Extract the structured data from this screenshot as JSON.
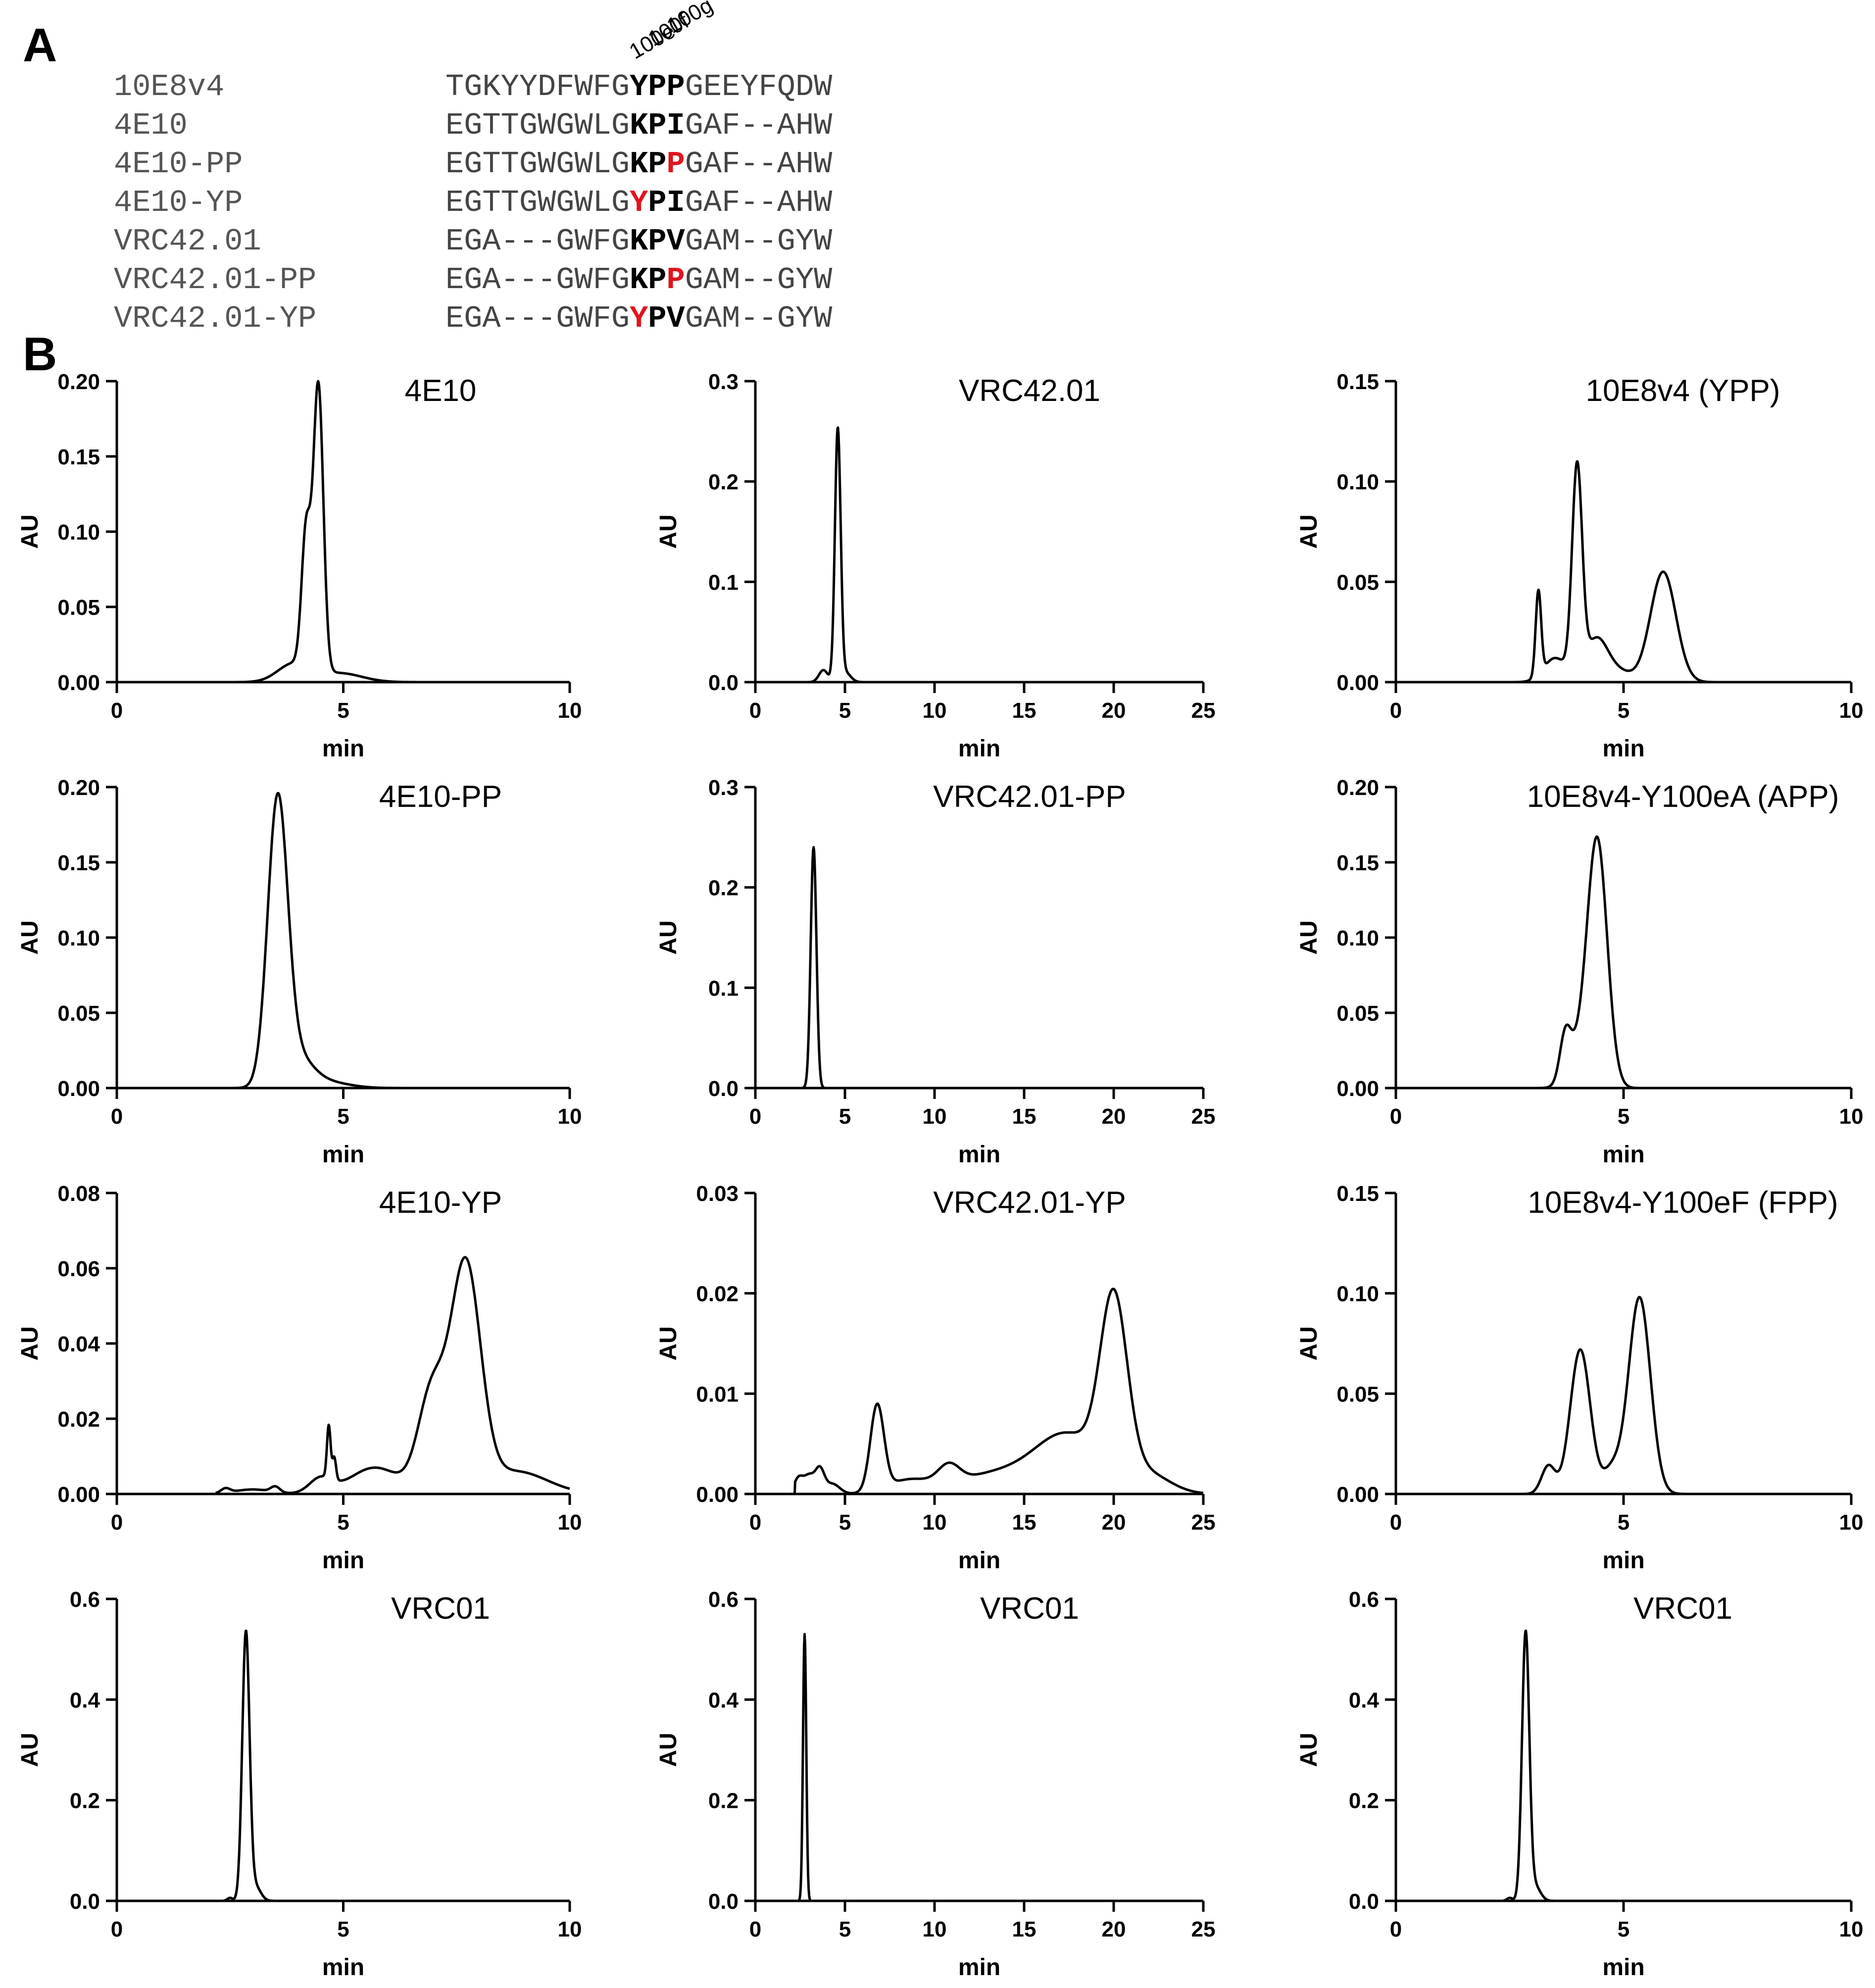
{
  "panel_labels": {
    "a": "A",
    "b": "B"
  },
  "alignment": {
    "position_labels": [
      "100e",
      "100f",
      "100g"
    ],
    "sequences": [
      {
        "name": "10E8v4",
        "prefix": "TGKYYDFWFG",
        "motif": [
          [
            "Y",
            false
          ],
          [
            "P",
            false
          ],
          [
            "P",
            false
          ]
        ],
        "suffix": "GEEYFQDW"
      },
      {
        "name": "4E10",
        "prefix": "EGTTGWGWLG",
        "motif": [
          [
            "K",
            false
          ],
          [
            "P",
            false
          ],
          [
            "I",
            false
          ]
        ],
        "suffix": "GAF--AHW"
      },
      {
        "name": "4E10-PP",
        "prefix": "EGTTGWGWLG",
        "motif": [
          [
            "K",
            false
          ],
          [
            "P",
            false
          ],
          [
            "P",
            true
          ]
        ],
        "suffix": "GAF--AHW"
      },
      {
        "name": "4E10-YP",
        "prefix": "EGTTGWGWLG",
        "motif": [
          [
            "Y",
            true
          ],
          [
            "P",
            false
          ],
          [
            "I",
            false
          ]
        ],
        "suffix": "GAF--AHW"
      },
      {
        "name": "VRC42.01",
        "prefix": "EGA---GWFG",
        "motif": [
          [
            "K",
            false
          ],
          [
            "P",
            false
          ],
          [
            "V",
            false
          ]
        ],
        "suffix": "GAM--GYW"
      },
      {
        "name": "VRC42.01-PP",
        "prefix": "EGA---GWFG",
        "motif": [
          [
            "K",
            false
          ],
          [
            "P",
            false
          ],
          [
            "P",
            true
          ]
        ],
        "suffix": "GAM--GYW"
      },
      {
        "name": "VRC42.01-YP",
        "prefix": "EGA---GWFG",
        "motif": [
          [
            "Y",
            true
          ],
          [
            "P",
            false
          ],
          [
            "V",
            false
          ]
        ],
        "suffix": "GAM--GYW"
      }
    ]
  },
  "colors": {
    "mutation": "#e0141e",
    "line": "#000000"
  },
  "chart_data": [
    {
      "type": "line",
      "title": "4E10",
      "xlabel": "min",
      "ylabel": "AU",
      "xlim": [
        0,
        10
      ],
      "ylim": [
        0,
        0.2
      ],
      "xticks": [
        0,
        5,
        10
      ],
      "yticks": [
        0,
        0.05,
        0.1,
        0.15,
        0.2
      ],
      "ytick_labels": [
        "0.00",
        "0.05",
        "0.10",
        "0.15",
        "0.20"
      ],
      "peaks": [
        {
          "c": 4.18,
          "h": 0.09,
          "w": 0.1
        },
        {
          "c": 4.45,
          "h": 0.19,
          "w": 0.11
        },
        {
          "c": 3.9,
          "h": 0.012,
          "w": 0.35
        },
        {
          "c": 4.9,
          "h": 0.006,
          "w": 0.5
        }
      ]
    },
    {
      "type": "line",
      "title": "VRC42.01",
      "xlabel": "min",
      "ylabel": "AU",
      "xlim": [
        0,
        25
      ],
      "ylim": [
        0,
        0.3
      ],
      "xticks": [
        0,
        5,
        10,
        15,
        20,
        25
      ],
      "yticks": [
        0,
        0.1,
        0.2,
        0.3
      ],
      "ytick_labels": [
        "0.0",
        "0.1",
        "0.2",
        "0.3"
      ],
      "peaks": [
        {
          "c": 3.8,
          "h": 0.012,
          "w": 0.25
        },
        {
          "c": 4.6,
          "h": 0.25,
          "w": 0.16
        },
        {
          "c": 5.0,
          "h": 0.01,
          "w": 0.3
        }
      ]
    },
    {
      "type": "line",
      "title": "10E8v4 (YPP)",
      "xlabel": "min",
      "ylabel": "AU",
      "xlim": [
        0,
        10
      ],
      "ylim": [
        0,
        0.15
      ],
      "xticks": [
        0,
        5,
        10
      ],
      "yticks": [
        0,
        0.05,
        0.1,
        0.15
      ],
      "ytick_labels": [
        "0.00",
        "0.05",
        "0.10",
        "0.15"
      ],
      "peaks": [
        {
          "c": 3.13,
          "h": 0.042,
          "w": 0.06
        },
        {
          "c": 3.5,
          "h": 0.012,
          "w": 0.25
        },
        {
          "c": 3.98,
          "h": 0.103,
          "w": 0.11
        },
        {
          "c": 4.4,
          "h": 0.021,
          "w": 0.25
        },
        {
          "c": 5.87,
          "h": 0.055,
          "w": 0.28
        },
        {
          "c": 4.9,
          "h": 0.005,
          "w": 0.3
        }
      ]
    },
    {
      "type": "line",
      "title": "4E10-PP",
      "xlabel": "min",
      "ylabel": "AU",
      "xlim": [
        0,
        10
      ],
      "ylim": [
        0,
        0.2
      ],
      "xticks": [
        0,
        5,
        10
      ],
      "yticks": [
        0,
        0.05,
        0.1,
        0.15,
        0.2
      ],
      "ytick_labels": [
        "0.00",
        "0.05",
        "0.10",
        "0.15",
        "0.20"
      ],
      "peaks": [
        {
          "c": 3.55,
          "h": 0.185,
          "w": 0.22
        },
        {
          "c": 3.95,
          "h": 0.02,
          "w": 0.35
        },
        {
          "c": 4.6,
          "h": 0.004,
          "w": 0.5
        }
      ]
    },
    {
      "type": "line",
      "title": "VRC42.01-PP",
      "xlabel": "min",
      "ylabel": "AU",
      "xlim": [
        0,
        25
      ],
      "ylim": [
        0,
        0.3
      ],
      "xticks": [
        0,
        5,
        10,
        15,
        20,
        25
      ],
      "yticks": [
        0,
        0.1,
        0.2,
        0.3
      ],
      "ytick_labels": [
        "0.0",
        "0.1",
        "0.2",
        "0.3"
      ],
      "peaks": [
        {
          "c": 3.25,
          "h": 0.24,
          "w": 0.16
        }
      ]
    },
    {
      "type": "line",
      "title": "10E8v4-Y100eA (APP)",
      "xlabel": "min",
      "ylabel": "AU",
      "xlim": [
        0,
        10
      ],
      "ylim": [
        0,
        0.2
      ],
      "xticks": [
        0,
        5,
        10
      ],
      "yticks": [
        0,
        0.05,
        0.1,
        0.15,
        0.2
      ],
      "ytick_labels": [
        "0.00",
        "0.05",
        "0.10",
        "0.15",
        "0.20"
      ],
      "peaks": [
        {
          "c": 3.72,
          "h": 0.028,
          "w": 0.12
        },
        {
          "c": 4.42,
          "h": 0.165,
          "w": 0.22
        },
        {
          "c": 3.95,
          "h": 0.02,
          "w": 0.22
        }
      ]
    },
    {
      "type": "line",
      "title": "4E10-YP",
      "xlabel": "min",
      "ylabel": "AU",
      "xlim": [
        0,
        10
      ],
      "ylim": [
        0,
        0.08
      ],
      "xticks": [
        0,
        5,
        10
      ],
      "yticks": [
        0,
        0.02,
        0.04,
        0.06,
        0.08
      ],
      "ytick_labels": [
        "0.00",
        "0.02",
        "0.04",
        "0.06",
        "0.08"
      ],
      "peaks": [
        {
          "c": 2.4,
          "h": 0.0012,
          "w": 0.1
        },
        {
          "c": 3.0,
          "h": 0.0012,
          "w": 0.4
        },
        {
          "c": 3.5,
          "h": 0.0015,
          "w": 0.1
        },
        {
          "c": 4.5,
          "h": 0.004,
          "w": 0.25
        },
        {
          "c": 4.68,
          "h": 0.014,
          "w": 0.04
        },
        {
          "c": 4.8,
          "h": 0.006,
          "w": 0.04
        },
        {
          "c": 5.7,
          "h": 0.007,
          "w": 0.55
        },
        {
          "c": 6.95,
          "h": 0.026,
          "w": 0.3
        },
        {
          "c": 7.7,
          "h": 0.06,
          "w": 0.33
        },
        {
          "c": 8.8,
          "h": 0.006,
          "w": 0.7
        }
      ]
    },
    {
      "type": "line",
      "title": "VRC42.01-YP",
      "xlabel": "min",
      "ylabel": "AU",
      "xlim": [
        0,
        25
      ],
      "ylim": [
        0,
        0.03
      ],
      "xticks": [
        0,
        5,
        10,
        15,
        20,
        25
      ],
      "yticks": [
        0,
        0.01,
        0.02,
        0.03
      ],
      "ytick_labels": [
        "0.00",
        "0.01",
        "0.02",
        "0.03"
      ],
      "peaks": [
        {
          "c": 2.4,
          "h": 0.0015,
          "w": 0.25
        },
        {
          "c": 3.0,
          "h": 0.0018,
          "w": 0.3
        },
        {
          "c": 3.6,
          "h": 0.0023,
          "w": 0.25
        },
        {
          "c": 4.3,
          "h": 0.001,
          "w": 0.4
        },
        {
          "c": 6.8,
          "h": 0.0085,
          "w": 0.38
        },
        {
          "c": 8.5,
          "h": 0.0012,
          "w": 1.2
        },
        {
          "c": 10.8,
          "h": 0.0018,
          "w": 0.6
        },
        {
          "c": 13.5,
          "h": 0.002,
          "w": 2.5
        },
        {
          "c": 17.5,
          "h": 0.0055,
          "w": 1.8
        },
        {
          "c": 20.0,
          "h": 0.0175,
          "w": 0.75
        },
        {
          "c": 21.8,
          "h": 0.002,
          "w": 1.3
        }
      ]
    },
    {
      "type": "line",
      "title": "10E8v4-Y100eF (FPP)",
      "xlabel": "min",
      "ylabel": "AU",
      "xlim": [
        0,
        10
      ],
      "ylim": [
        0,
        0.15
      ],
      "xticks": [
        0,
        5,
        10
      ],
      "yticks": [
        0,
        0.05,
        0.1,
        0.15
      ],
      "ytick_labels": [
        "0.00",
        "0.05",
        "0.10",
        "0.15"
      ],
      "peaks": [
        {
          "c": 3.35,
          "h": 0.014,
          "w": 0.15
        },
        {
          "c": 4.05,
          "h": 0.072,
          "w": 0.22
        },
        {
          "c": 4.75,
          "h": 0.012,
          "w": 0.2
        },
        {
          "c": 5.35,
          "h": 0.098,
          "w": 0.24
        }
      ]
    },
    {
      "type": "line",
      "title": "VRC01",
      "xlabel": "min",
      "ylabel": "AU",
      "xlim": [
        0,
        10
      ],
      "ylim": [
        0,
        0.6
      ],
      "xticks": [
        0,
        5,
        10
      ],
      "yticks": [
        0,
        0.2,
        0.4,
        0.6
      ],
      "ytick_labels": [
        "0.0",
        "0.2",
        "0.4",
        "0.6"
      ],
      "peaks": [
        {
          "c": 2.5,
          "h": 0.006,
          "w": 0.06
        },
        {
          "c": 2.85,
          "h": 0.53,
          "w": 0.08
        },
        {
          "c": 3.05,
          "h": 0.03,
          "w": 0.12
        }
      ]
    },
    {
      "type": "line",
      "title": "VRC01",
      "xlabel": "min",
      "ylabel": "AU",
      "xlim": [
        0,
        25
      ],
      "ylim": [
        0,
        0.6
      ],
      "xticks": [
        0,
        5,
        10,
        15,
        20,
        25
      ],
      "yticks": [
        0,
        0.2,
        0.4,
        0.6
      ],
      "ytick_labels": [
        "0.0",
        "0.2",
        "0.4",
        "0.6"
      ],
      "peaks": [
        {
          "c": 2.75,
          "h": 0.53,
          "w": 0.09
        }
      ]
    },
    {
      "type": "line",
      "title": "VRC01",
      "xlabel": "min",
      "ylabel": "AU",
      "xlim": [
        0,
        10
      ],
      "ylim": [
        0,
        0.6
      ],
      "xticks": [
        0,
        5,
        10
      ],
      "yticks": [
        0,
        0.2,
        0.4,
        0.6
      ],
      "ytick_labels": [
        "0.0",
        "0.2",
        "0.4",
        "0.6"
      ],
      "peaks": [
        {
          "c": 2.5,
          "h": 0.006,
          "w": 0.06
        },
        {
          "c": 2.85,
          "h": 0.53,
          "w": 0.08
        },
        {
          "c": 3.05,
          "h": 0.03,
          "w": 0.12
        }
      ]
    }
  ]
}
